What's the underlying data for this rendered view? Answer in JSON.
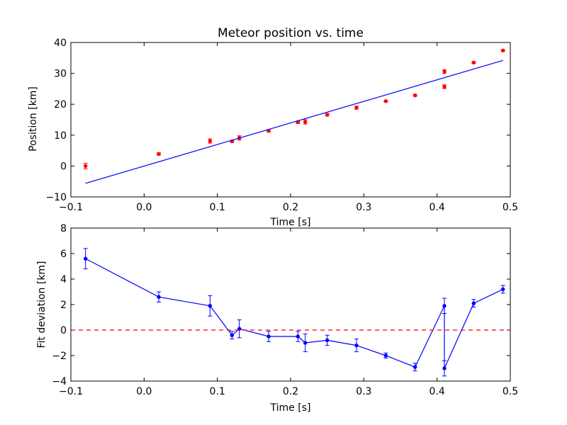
{
  "chart_data": [
    {
      "type": "scatter",
      "title": "Meteor position vs. time",
      "xlabel": "Time [s]",
      "ylabel": "Position [km]",
      "xlim": [
        -0.1,
        0.5
      ],
      "ylim": [
        -10,
        40
      ],
      "xticks": [
        -0.1,
        0.0,
        0.1,
        0.2,
        0.3,
        0.4,
        0.5
      ],
      "yticks": [
        -10,
        0,
        10,
        20,
        30,
        40
      ],
      "xtick_labels": [
        "−0.1",
        "0.0",
        "0.1",
        "0.2",
        "0.3",
        "0.4",
        "0.5"
      ],
      "ytick_labels": [
        "−10",
        "0",
        "10",
        "20",
        "30",
        "40"
      ],
      "grid": false,
      "series": [
        {
          "kind": "errorbar-points",
          "color": "#ff0000",
          "x": [
            -0.08,
            0.02,
            0.09,
            0.12,
            0.13,
            0.17,
            0.21,
            0.22,
            0.25,
            0.29,
            0.33,
            0.37,
            0.41,
            0.41,
            0.45,
            0.49
          ],
          "y": [
            0.0,
            3.9,
            8.1,
            8.0,
            9.1,
            11.4,
            14.2,
            14.3,
            16.6,
            18.9,
            21.0,
            22.9,
            30.6,
            25.7,
            33.5,
            37.4
          ],
          "yerr": [
            0.9,
            0.4,
            0.7,
            0.3,
            0.7,
            0.4,
            0.4,
            0.7,
            0.4,
            0.5,
            0.2,
            0.3,
            0.6,
            0.6,
            0.3,
            0.2
          ]
        },
        {
          "kind": "fit-line",
          "color": "#0000ff",
          "x": [
            -0.08,
            0.49
          ],
          "y": [
            -5.6,
            34.2
          ]
        }
      ]
    },
    {
      "type": "line",
      "title": "",
      "xlabel": "Time [s]",
      "ylabel": "Fit deviation [km]",
      "xlim": [
        -0.1,
        0.5
      ],
      "ylim": [
        -4,
        8
      ],
      "xticks": [
        -0.1,
        0.0,
        0.1,
        0.2,
        0.3,
        0.4,
        0.5
      ],
      "yticks": [
        -4,
        -2,
        0,
        2,
        4,
        6,
        8
      ],
      "xtick_labels": [
        "−0.1",
        "0.0",
        "0.1",
        "0.2",
        "0.3",
        "0.4",
        "0.5"
      ],
      "ytick_labels": [
        "−4",
        "−2",
        "0",
        "2",
        "4",
        "6",
        "8"
      ],
      "grid": false,
      "series": [
        {
          "kind": "errorbar-line",
          "color": "#0000ff",
          "x": [
            -0.08,
            0.02,
            0.09,
            0.12,
            0.13,
            0.17,
            0.21,
            0.22,
            0.25,
            0.29,
            0.33,
            0.37,
            0.41,
            0.41,
            0.45,
            0.49
          ],
          "y": [
            5.6,
            2.6,
            1.9,
            -0.4,
            0.1,
            -0.5,
            -0.5,
            -1.0,
            -0.8,
            -1.2,
            -2.0,
            -2.9,
            1.9,
            -3.0,
            2.1,
            3.2
          ],
          "yerr": [
            0.8,
            0.4,
            0.8,
            0.3,
            0.7,
            0.4,
            0.4,
            0.7,
            0.4,
            0.5,
            0.2,
            0.3,
            0.6,
            0.6,
            0.3,
            0.3
          ]
        },
        {
          "kind": "reference-line",
          "color": "#ff0000",
          "style": "dashed",
          "y": 0
        }
      ]
    }
  ]
}
